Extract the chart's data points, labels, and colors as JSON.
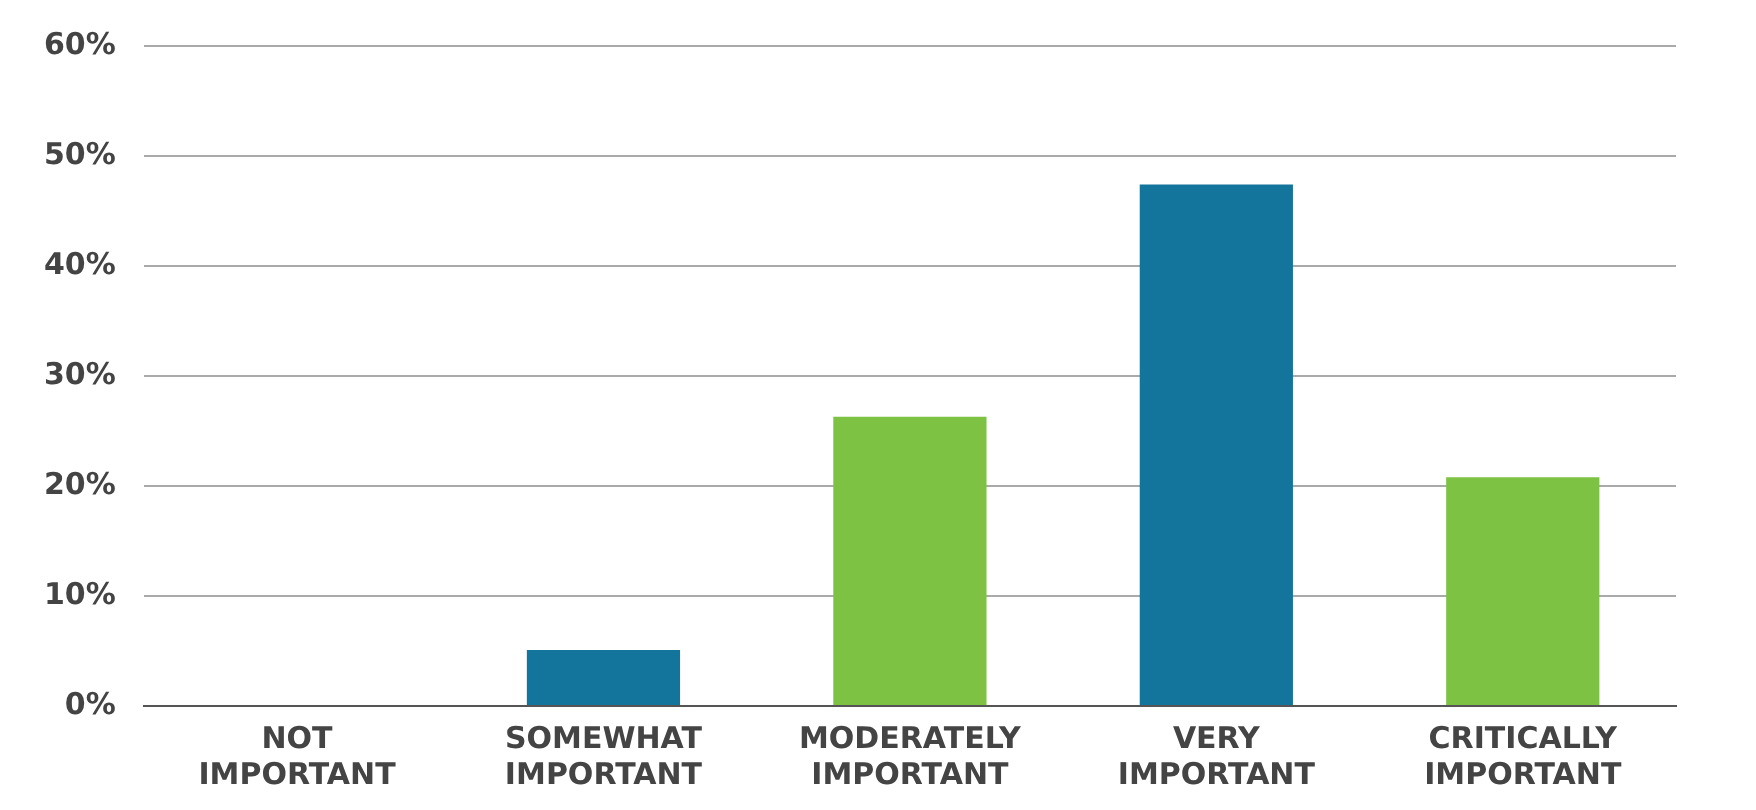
{
  "chart_data": {
    "type": "bar",
    "categories": [
      "NOT IMPORTANT",
      "SOMEWHAT IMPORTANT",
      "MODERATELY IMPORTANT",
      "VERY IMPORTANT",
      "CRITICALLY IMPORTANT"
    ],
    "values": [
      0,
      5.1,
      26.3,
      47.4,
      20.8
    ],
    "colors": [
      "#13749c",
      "#13749c",
      "#7dc242",
      "#13749c",
      "#7dc242"
    ],
    "ylim": [
      0,
      60
    ],
    "yticks": [
      {
        "value": 0,
        "label": "0%"
      },
      {
        "value": 10,
        "label": "10%"
      },
      {
        "value": 20,
        "label": "20%"
      },
      {
        "value": 30,
        "label": "30%"
      },
      {
        "value": 40,
        "label": "40%"
      },
      {
        "value": 50,
        "label": "50%"
      },
      {
        "value": 60,
        "label": "60%"
      }
    ],
    "grid": "y",
    "legend": false
  }
}
